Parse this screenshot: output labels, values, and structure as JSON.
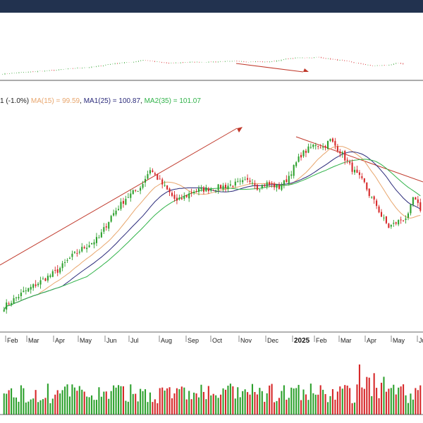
{
  "legend": {
    "price_text": "1 (-1.0%)",
    "ma_text": "MA(15) = 99.59",
    "ma1_text": "MA1(25) = 100.87",
    "ma2_text": "MA2(35) = 101.07"
  },
  "colors": {
    "header": "#22324f",
    "up": "#2ca02c",
    "down": "#d62728",
    "ma": "#e8a66d",
    "ma1": "#2a2a7a",
    "ma2": "#31b34a",
    "trendline": "#c0392b"
  },
  "chart_data": {
    "type": "candlestick",
    "x_labels": [
      "Feb",
      "Mar",
      "Apr",
      "May",
      "Jun",
      "Jul",
      "Aug",
      "Sep",
      "Oct",
      "Nov",
      "Dec",
      "2025",
      "Feb",
      "Mar",
      "Apr",
      "May",
      "Ju"
    ],
    "price_anchors": [
      [
        0,
        66
      ],
      [
        8,
        70
      ],
      [
        22,
        76
      ],
      [
        28,
        80
      ],
      [
        32,
        82
      ],
      [
        39,
        85
      ],
      [
        44,
        91
      ],
      [
        50,
        96
      ],
      [
        56,
        99
      ],
      [
        60,
        104
      ],
      [
        66,
        99
      ],
      [
        71,
        95
      ],
      [
        78,
        98
      ],
      [
        88,
        99
      ],
      [
        96,
        100
      ],
      [
        102,
        101
      ],
      [
        104,
        99
      ],
      [
        108,
        100
      ],
      [
        113,
        99
      ],
      [
        116,
        101
      ],
      [
        122,
        108
      ],
      [
        128,
        111
      ],
      [
        131,
        110
      ],
      [
        134,
        112
      ],
      [
        138,
        109
      ],
      [
        143,
        104
      ],
      [
        148,
        100
      ],
      [
        150,
        97
      ],
      [
        153,
        94
      ],
      [
        155,
        91
      ],
      [
        158,
        88
      ],
      [
        163,
        90
      ],
      [
        166,
        91
      ],
      [
        168,
        96
      ],
      [
        171,
        93
      ]
    ],
    "price_range": [
      60,
      118
    ],
    "volume_range": [
      0,
      100
    ],
    "series": [
      {
        "name": "MA(15)",
        "period": 15
      },
      {
        "name": "MA1(25)",
        "period": 25
      },
      {
        "name": "MA2(35)",
        "period": 35
      }
    ]
  }
}
